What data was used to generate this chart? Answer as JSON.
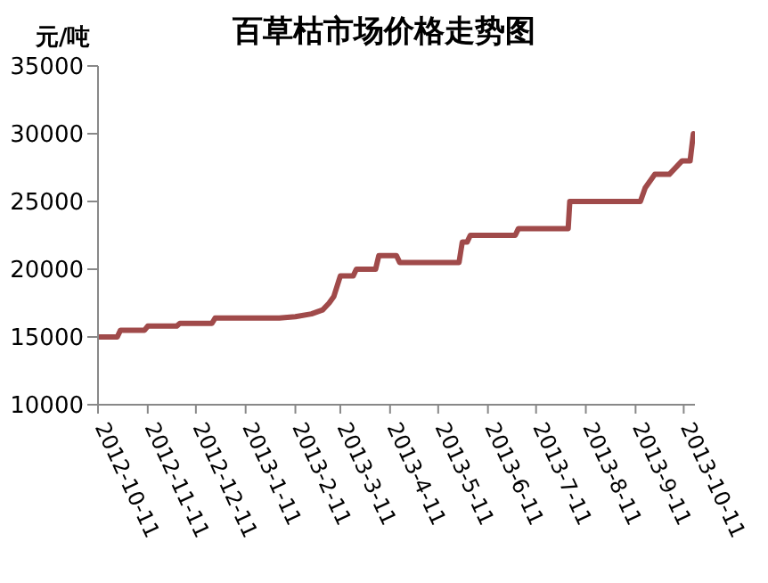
{
  "chart_data": {
    "type": "line",
    "title": "百草枯市场价格走势图",
    "ylabel": "元/吨",
    "x": [
      "2012-10-11",
      "2012-10-23",
      "2012-10-25",
      "2012-11-09",
      "2012-11-11",
      "2012-11-29",
      "2012-12-01",
      "2012-12-21",
      "2012-12-23",
      "2013-02-01",
      "2013-02-11",
      "2013-02-21",
      "2013-02-28",
      "2013-03-04",
      "2013-03-07",
      "2013-03-11",
      "2013-03-19",
      "2013-03-21",
      "2013-04-02",
      "2013-04-04",
      "2013-04-15",
      "2013-04-17",
      "2013-05-24",
      "2013-05-26",
      "2013-05-29",
      "2013-05-31",
      "2013-06-28",
      "2013-06-30",
      "2013-07-31",
      "2013-08-01",
      "2013-09-14",
      "2013-09-17",
      "2013-09-23",
      "2013-10-02",
      "2013-10-10",
      "2013-10-15",
      "2013-10-17"
    ],
    "series": [
      {
        "color": "#a04a4a",
        "values": [
          15000,
          15000,
          15500,
          15500,
          15800,
          15800,
          16000,
          16000,
          16400,
          16400,
          16500,
          16700,
          17000,
          17500,
          18000,
          19500,
          19500,
          20000,
          20000,
          21000,
          21000,
          20500,
          20500,
          22000,
          22000,
          22500,
          22500,
          23000,
          23000,
          25000,
          25000,
          26000,
          27000,
          27000,
          28000,
          28000,
          30000
        ]
      }
    ],
    "xlim": [
      "2012-10-11",
      "2013-10-18"
    ],
    "xticks": [
      "2012-10-11",
      "2012-11-11",
      "2012-12-11",
      "2013-1-11",
      "2013-2-11",
      "2013-3-11",
      "2013-4-11",
      "2013-5-11",
      "2013-6-11",
      "2013-7-11",
      "2013-8-11",
      "2013-9-11",
      "2013-10-11"
    ],
    "ylim": [
      10000,
      35000
    ],
    "yticks": [
      10000,
      15000,
      20000,
      25000,
      30000,
      35000
    ],
    "grid": false,
    "legend": false,
    "marker": "none",
    "line_style": "solid"
  }
}
